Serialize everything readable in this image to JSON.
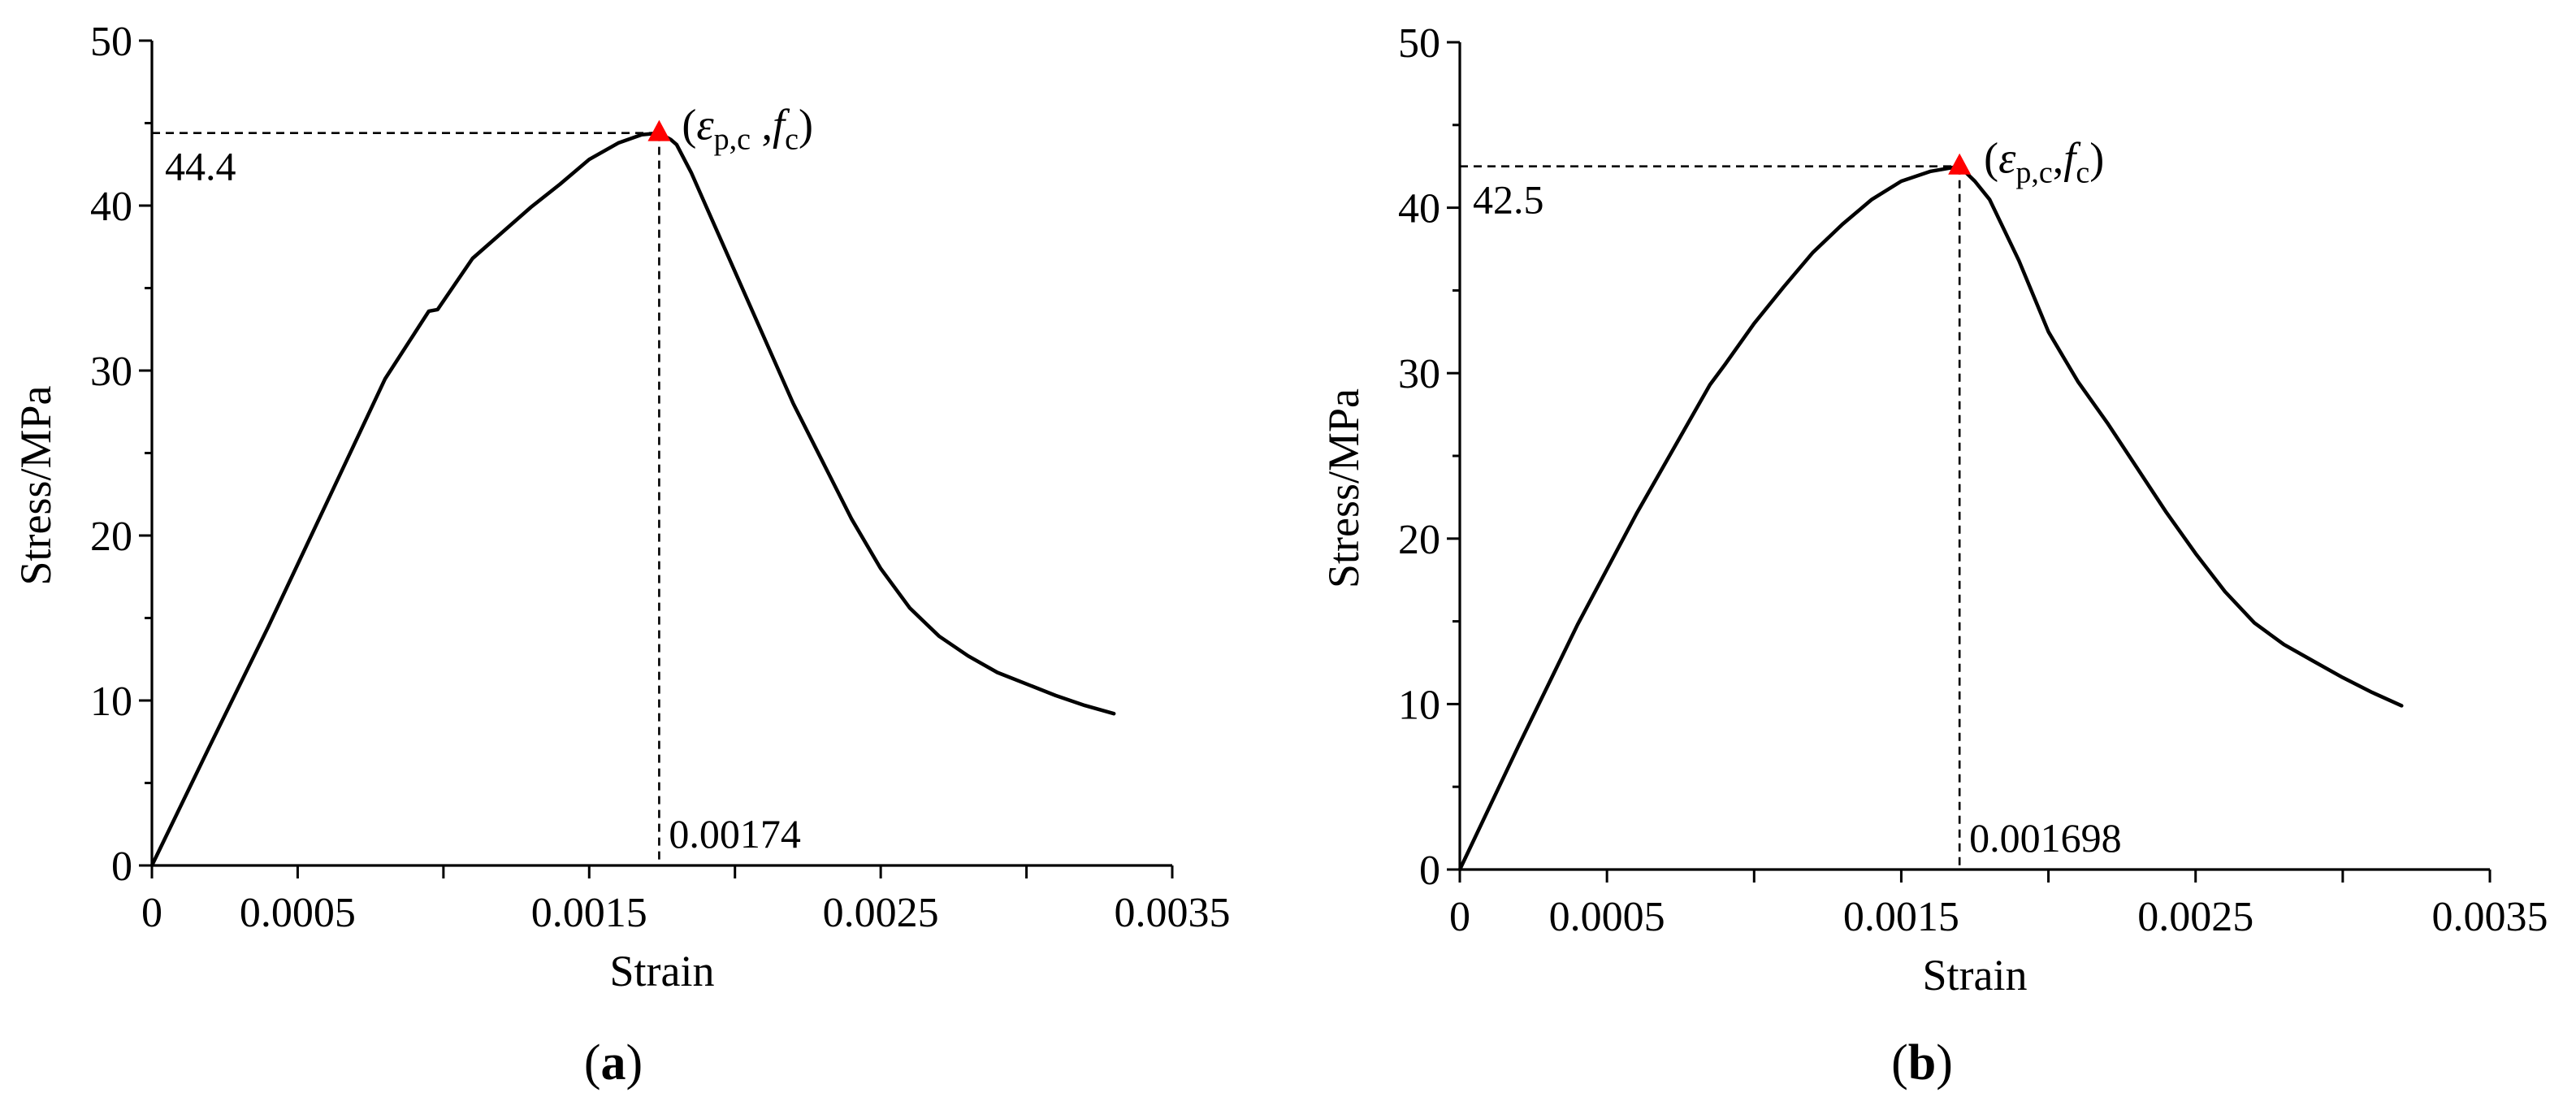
{
  "chart_data": [
    {
      "type": "line",
      "panel_label": "a",
      "xlabel": "Strain",
      "ylabel": "Stress/MPa",
      "xlim": [
        0,
        0.0035
      ],
      "ylim": [
        0,
        50
      ],
      "x_ticks": [
        "0",
        "0.0005",
        "0.0015",
        "0.0025",
        "0.0035"
      ],
      "x_tick_values": [
        0,
        0.0005,
        0.0015,
        0.0025,
        0.0035
      ],
      "y_ticks": [
        "0",
        "10",
        "20",
        "30",
        "40",
        "50"
      ],
      "y_tick_values": [
        0,
        10,
        20,
        30,
        40,
        50
      ],
      "series": [
        {
          "x": [
            0,
            0.0002,
            0.0004,
            0.0006,
            0.0008,
            0.00095,
            0.00098,
            0.0011,
            0.0013,
            0.0014,
            0.0015,
            0.0016,
            0.00168,
            0.00174,
            0.00178,
            0.0018,
            0.00185,
            0.0019,
            0.002,
            0.0021,
            0.0022,
            0.0023,
            0.0024,
            0.0025,
            0.0026,
            0.0027,
            0.0028,
            0.0029,
            0.003,
            0.0031,
            0.0032,
            0.0033
          ],
          "y": [
            0,
            7.3,
            14.5,
            22.0,
            29.5,
            33.6,
            33.7,
            36.8,
            39.9,
            41.3,
            42.8,
            43.8,
            44.3,
            44.4,
            44.0,
            43.7,
            42.0,
            40.0,
            36.0,
            32.0,
            28.0,
            24.5,
            21.0,
            18.0,
            15.6,
            13.9,
            12.7,
            11.7,
            11.0,
            10.3,
            9.7,
            9.2
          ]
        }
      ],
      "peak": {
        "x": 0.00174,
        "y": 44.4
      },
      "peak_color": "#ff0000",
      "peak_x_label": "0.00174",
      "peak_y_label": "44.4",
      "peak_point_label": {
        "open": "(",
        "epsilon": "ε",
        "eps_sub": "p,c",
        "sep": " ,",
        "f": "f",
        "f_sub": "c",
        "close": ")"
      }
    },
    {
      "type": "line",
      "panel_label": "b",
      "xlabel": "Strain",
      "ylabel": "Stress/MPa",
      "xlim": [
        0,
        0.0035
      ],
      "ylim": [
        0,
        50
      ],
      "x_ticks": [
        "0",
        "0.0005",
        "0.0015",
        "0.0025",
        "0.0035"
      ],
      "x_tick_values": [
        0,
        0.0005,
        0.0015,
        0.0025,
        0.0035
      ],
      "y_ticks": [
        "0",
        "10",
        "20",
        "30",
        "40",
        "50"
      ],
      "y_tick_values": [
        0,
        10,
        20,
        30,
        40,
        50
      ],
      "series": [
        {
          "x": [
            0,
            0.0002,
            0.0004,
            0.0006,
            0.00085,
            0.0009,
            0.001,
            0.0011,
            0.0012,
            0.0013,
            0.0014,
            0.0015,
            0.0016,
            0.001698,
            0.00175,
            0.0018,
            0.0019,
            0.002,
            0.0021,
            0.0022,
            0.0023,
            0.0024,
            0.0025,
            0.0026,
            0.0027,
            0.0028,
            0.0029,
            0.003,
            0.0031,
            0.0032
          ],
          "y": [
            0,
            7.5,
            14.8,
            21.5,
            29.3,
            30.5,
            33.0,
            35.2,
            37.3,
            39.0,
            40.5,
            41.6,
            42.2,
            42.5,
            41.6,
            40.5,
            36.8,
            32.5,
            29.5,
            27.0,
            24.3,
            21.6,
            19.1,
            16.8,
            14.9,
            13.6,
            12.6,
            11.6,
            10.7,
            9.9
          ]
        }
      ],
      "peak": {
        "x": 0.001698,
        "y": 42.5
      },
      "peak_color": "#ff0000",
      "peak_x_label": "0.001698",
      "peak_y_label": "42.5",
      "peak_point_label": {
        "open": "(",
        "epsilon": "ε",
        "eps_sub": "p,c",
        "sep": ",",
        "f": "f",
        "f_sub": "c",
        "close": ")"
      }
    }
  ]
}
